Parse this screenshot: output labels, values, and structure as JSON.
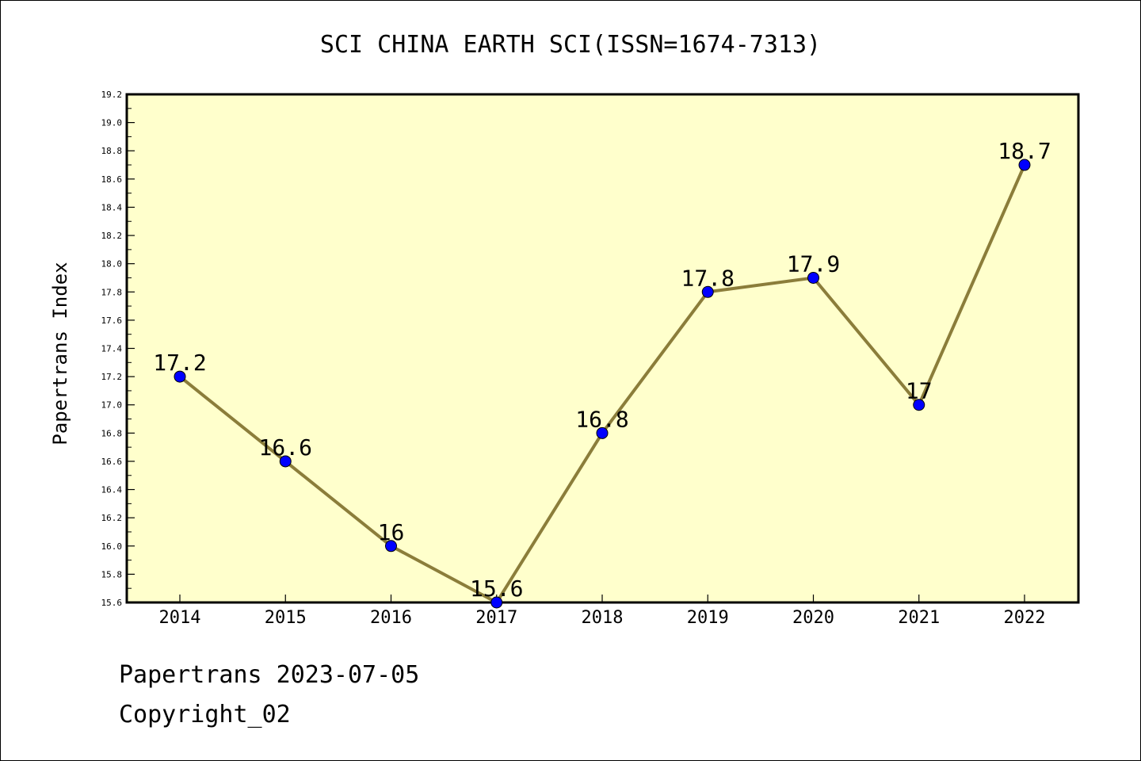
{
  "chart_data": {
    "type": "line",
    "title": "SCI CHINA EARTH SCI(ISSN=1674-7313)",
    "xlabel": "",
    "ylabel": "Papertrans Index",
    "categories": [
      "2014",
      "2015",
      "2016",
      "2017",
      "2018",
      "2019",
      "2020",
      "2021",
      "2022"
    ],
    "series": [
      {
        "values": [
          17.2,
          16.6,
          16.0,
          15.6,
          16.8,
          17.8,
          17.9,
          17.0,
          18.7
        ],
        "data_labels": [
          "17.2",
          "16.6",
          "16",
          "15.6",
          "16.8",
          "17.8",
          "17.9",
          "17",
          "18.7"
        ]
      }
    ],
    "ylim": [
      15.6,
      19.2
    ],
    "yticks": [
      "15.6",
      "15.8",
      "16.0",
      "16.2",
      "16.4",
      "16.6",
      "16.8",
      "17.0",
      "17.2",
      "17.4",
      "17.6",
      "17.8",
      "18.0",
      "18.2",
      "18.4",
      "18.6",
      "18.8",
      "19.0",
      "19.2"
    ],
    "grid": false,
    "legend": "none",
    "colors": {
      "plot_background": "#ffffcc",
      "line": "#8b7d3a",
      "marker": "#0000ff"
    }
  },
  "footer": {
    "line1": "Papertrans 2023-07-05",
    "line2": "Copyright_02"
  }
}
